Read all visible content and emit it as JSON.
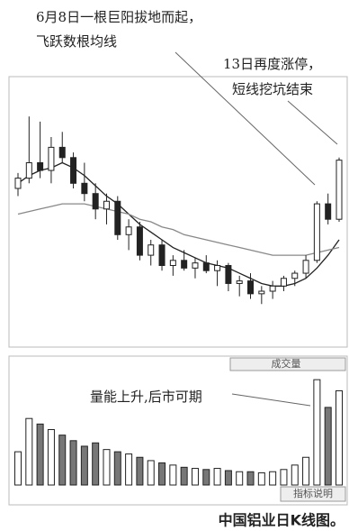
{
  "chart_data": {
    "type": "candlestick",
    "annotations": [
      "6月8日一根巨阳拔地而起，",
      "飞跃数根均线",
      "13日再度涨停，",
      "短线挖坑结束",
      "量能上升,后市可期"
    ],
    "volume_title": "成交量",
    "indicator_label": "指标说明",
    "caption": "中国铝业日K线图。",
    "open": [
      60,
      64,
      70,
      67,
      76,
      72,
      62,
      58,
      52,
      55,
      42,
      45,
      34,
      38,
      30,
      32,
      29,
      31,
      28,
      30,
      23,
      24,
      19,
      20,
      22,
      25,
      27,
      32,
      54,
      48
    ],
    "high": [
      66,
      88,
      86,
      80,
      82,
      74,
      70,
      62,
      58,
      57,
      48,
      47,
      40,
      40,
      34,
      36,
      33,
      34,
      32,
      31,
      26,
      27,
      22,
      24,
      26,
      28,
      34,
      55,
      58,
      72
    ],
    "low": [
      57,
      62,
      64,
      62,
      70,
      60,
      55,
      48,
      46,
      40,
      36,
      32,
      30,
      28,
      26,
      28,
      25,
      27,
      22,
      20,
      18,
      17,
      15,
      17,
      20,
      22,
      25,
      31,
      46,
      47
    ],
    "close": [
      64,
      70,
      67,
      76,
      72,
      62,
      58,
      52,
      55,
      42,
      45,
      34,
      38,
      30,
      32,
      29,
      31,
      28,
      30,
      23,
      24,
      19,
      20,
      22,
      25,
      27,
      32,
      54,
      48,
      71
    ],
    "ylim": [
      0,
      100
    ],
    "ma_series": [
      {
        "color": "#222",
        "values": [
          62,
          65,
          67,
          68,
          70,
          68,
          65,
          61,
          57,
          54,
          50,
          46,
          43,
          40,
          37,
          35,
          33,
          31,
          30,
          29,
          27,
          25,
          23,
          22,
          22,
          23,
          25,
          29,
          34,
          40
        ]
      },
      {
        "color": "#888",
        "values": [
          50,
          51,
          52,
          53,
          54,
          54,
          54,
          53,
          52,
          51,
          50,
          48,
          47,
          45,
          44,
          42,
          41,
          40,
          39,
          38,
          37,
          36,
          35,
          34,
          34,
          34,
          34,
          35,
          36,
          37
        ]
      }
    ],
    "volume": [
      30,
      60,
      55,
      50,
      45,
      40,
      35,
      38,
      32,
      30,
      28,
      25,
      22,
      20,
      18,
      16,
      15,
      14,
      15,
      13,
      12,
      12,
      11,
      12,
      14,
      18,
      25,
      95,
      70,
      85
    ],
    "volume_ylim": [
      0,
      100
    ],
    "up_color": "#ffffff",
    "down_color": "#222222"
  }
}
